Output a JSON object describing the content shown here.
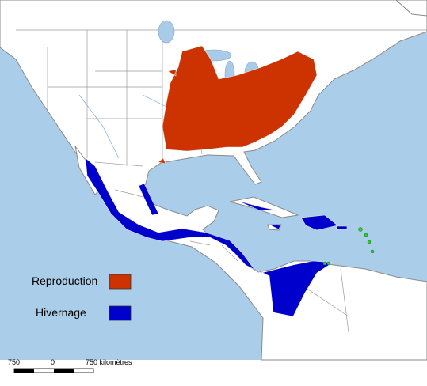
{
  "legend": {
    "items": [
      {
        "label": "Reproduction",
        "color": "#cc3300"
      },
      {
        "label": "Hivernage",
        "color": "#0000cc"
      }
    ]
  },
  "scale_bar": {
    "labels": [
      "750",
      "0",
      "750 kilomètres"
    ]
  }
}
